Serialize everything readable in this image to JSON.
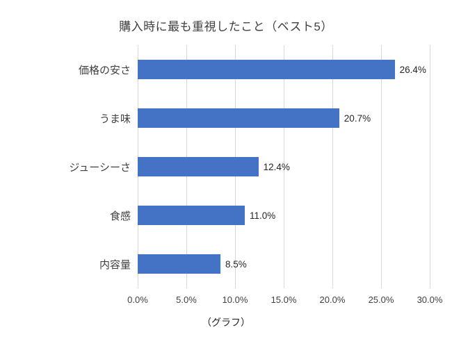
{
  "title": "購入時に最も重視したこと（ベスト5）",
  "caption": "（グラフ）",
  "chart_data": {
    "type": "bar",
    "orientation": "horizontal",
    "title": "購入時に最も重視したこと（ベスト5）",
    "categories": [
      "価格の安さ",
      "うま味",
      "ジューシーさ",
      "食感",
      "内容量"
    ],
    "values": [
      26.4,
      20.7,
      12.4,
      11.0,
      8.5
    ],
    "value_labels": [
      "26.4%",
      "20.7%",
      "12.4%",
      "11.0%",
      "8.5%"
    ],
    "x_ticks": [
      "0.0%",
      "5.0%",
      "10.0%",
      "15.0%",
      "20.0%",
      "25.0%",
      "30.0%"
    ],
    "xlim": [
      0,
      30
    ],
    "xlabel": "",
    "ylabel": "",
    "grid": true,
    "legend": false,
    "bar_color": "#4472C4",
    "gridline_color": "#d9d9d9"
  }
}
